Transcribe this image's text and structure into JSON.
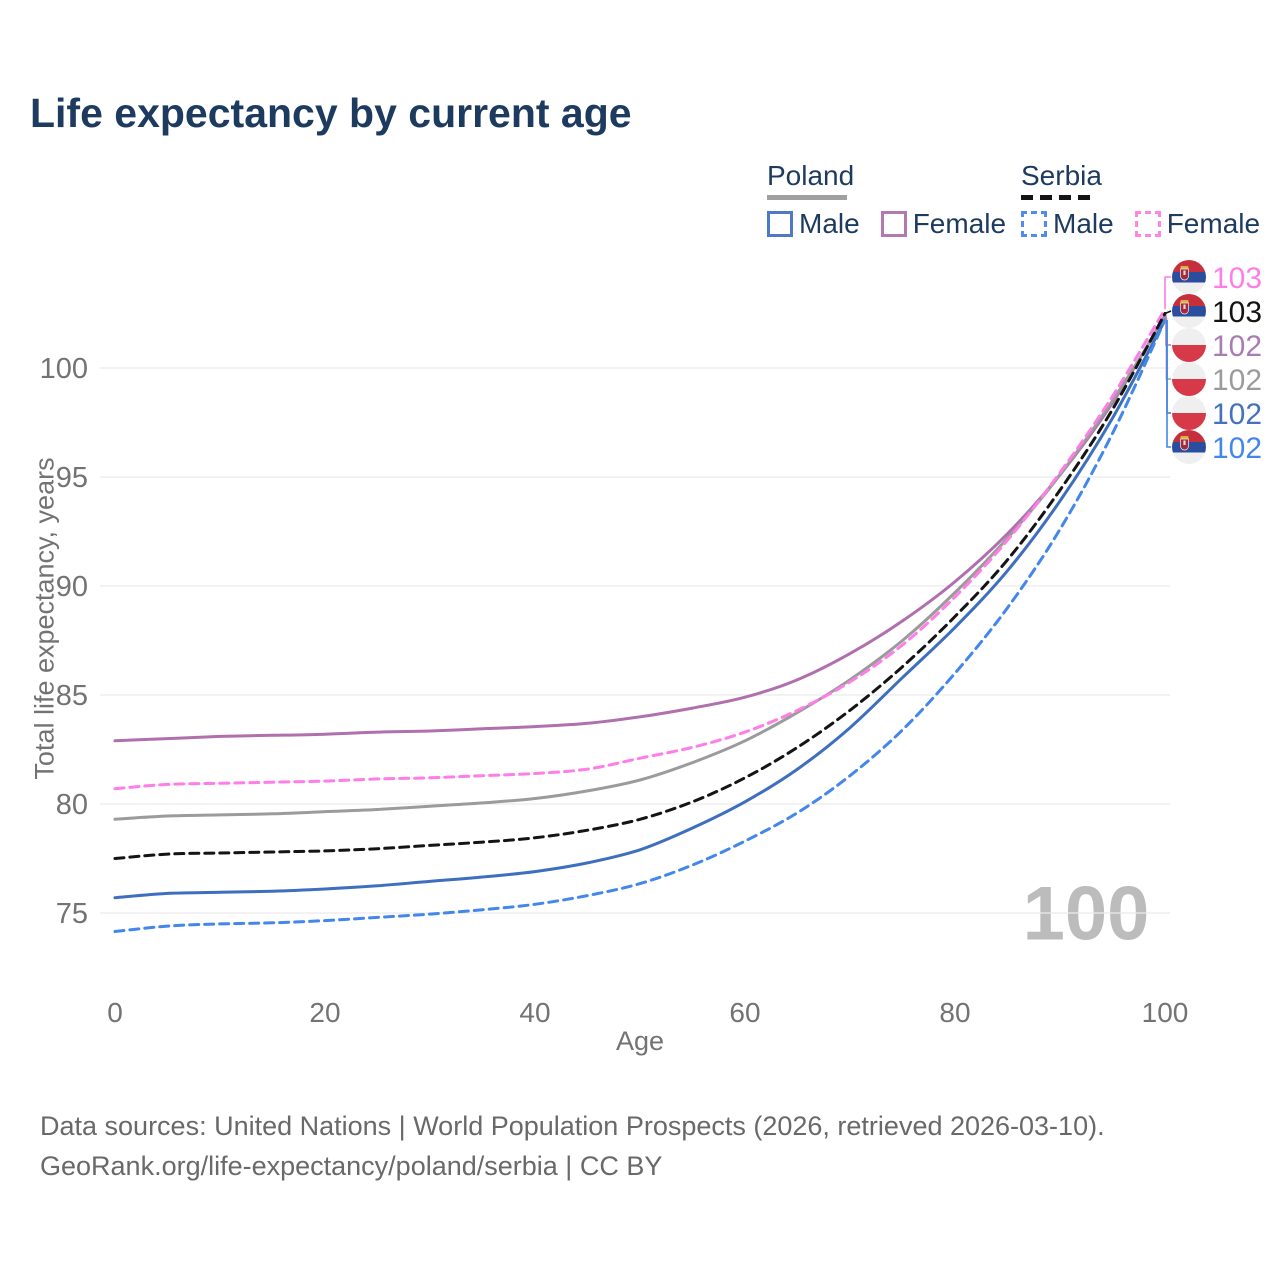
{
  "title": "Life expectancy by current age",
  "legend": {
    "poland": {
      "title": "Poland",
      "male": "Male",
      "female": "Female"
    },
    "serbia": {
      "title": "Serbia",
      "male": "Male",
      "female": "Female"
    }
  },
  "chart_data": {
    "type": "line",
    "title": "Life expectancy by current age",
    "xlabel": "Age",
    "ylabel": "Total life expectancy, years",
    "xlim": [
      0,
      100
    ],
    "ylim": [
      73.5,
      103.5
    ],
    "xticks": [
      0,
      20,
      40,
      60,
      80,
      100
    ],
    "yticks": [
      75,
      80,
      85,
      90,
      95,
      100
    ],
    "grid": "horizontal",
    "watermark": "100",
    "x": [
      0,
      5,
      10,
      15,
      20,
      25,
      30,
      35,
      40,
      45,
      50,
      55,
      60,
      65,
      70,
      75,
      80,
      85,
      90,
      95,
      100
    ],
    "series": [
      {
        "id": "poland-female",
        "name": "Poland Female",
        "country": "poland",
        "color": "#b06fad",
        "dash": false,
        "values": [
          82.9,
          83.0,
          83.1,
          83.15,
          83.2,
          83.3,
          83.35,
          83.45,
          83.55,
          83.7,
          84.0,
          84.4,
          84.9,
          85.7,
          86.9,
          88.4,
          90.2,
          92.4,
          95.1,
          98.4,
          102.4
        ]
      },
      {
        "id": "poland-total",
        "name": "Poland Both sexes",
        "country": "poland",
        "color": "#9b9b9b",
        "dash": false,
        "values": [
          79.3,
          79.45,
          79.5,
          79.55,
          79.65,
          79.75,
          79.9,
          80.05,
          80.25,
          80.6,
          81.1,
          81.9,
          82.9,
          84.2,
          85.7,
          87.5,
          89.7,
          92.2,
          95.1,
          98.5,
          102.3
        ]
      },
      {
        "id": "poland-male",
        "name": "Poland Male",
        "country": "poland",
        "color": "#3e6fbf",
        "dash": false,
        "values": [
          75.7,
          75.9,
          75.95,
          76.0,
          76.1,
          76.25,
          76.45,
          76.65,
          76.9,
          77.3,
          77.9,
          78.9,
          80.1,
          81.6,
          83.5,
          85.8,
          88.1,
          90.7,
          93.9,
          97.7,
          102.2
        ]
      },
      {
        "id": "serbia-female",
        "name": "Serbia Female",
        "country": "serbia",
        "color": "#fe7de6",
        "dash": true,
        "values": [
          80.7,
          80.9,
          80.95,
          81.0,
          81.05,
          81.15,
          81.2,
          81.3,
          81.4,
          81.6,
          82.1,
          82.6,
          83.3,
          84.3,
          85.6,
          87.3,
          89.5,
          92.1,
          95.2,
          98.7,
          102.7
        ]
      },
      {
        "id": "serbia-total",
        "name": "Serbia Both sexes",
        "country": "serbia",
        "color": "#141414",
        "dash": true,
        "values": [
          77.5,
          77.7,
          77.75,
          77.8,
          77.85,
          77.95,
          78.1,
          78.25,
          78.45,
          78.8,
          79.3,
          80.1,
          81.2,
          82.6,
          84.3,
          86.3,
          88.6,
          91.2,
          94.4,
          98.1,
          102.5
        ]
      },
      {
        "id": "serbia-male",
        "name": "Serbia Male",
        "country": "serbia",
        "color": "#4387ec",
        "dash": true,
        "values": [
          74.15,
          74.4,
          74.5,
          74.55,
          74.65,
          74.8,
          74.95,
          75.15,
          75.4,
          75.8,
          76.35,
          77.2,
          78.3,
          79.6,
          81.3,
          83.4,
          86.0,
          89.0,
          92.6,
          97.0,
          102.2
        ]
      }
    ],
    "end_labels": [
      {
        "value": "103",
        "color": "#fe7de6",
        "flag": "serbia",
        "series": "serbia-female",
        "end_value": 102.7
      },
      {
        "value": "103",
        "color": "#141414",
        "flag": "serbia",
        "series": "serbia-total",
        "end_value": 102.5
      },
      {
        "value": "102",
        "color": "#a97cb2",
        "flag": "poland",
        "series": "poland-female",
        "end_value": 102.4
      },
      {
        "value": "102",
        "color": "#9b9b9b",
        "flag": "poland",
        "series": "poland-total",
        "end_value": 102.3
      },
      {
        "value": "102",
        "color": "#4472bd",
        "flag": "poland",
        "series": "poland-male",
        "end_value": 102.2
      },
      {
        "value": "102",
        "color": "#4387ec",
        "flag": "serbia",
        "series": "serbia-male",
        "end_value": 102.2
      }
    ]
  },
  "footer": {
    "line1": "Data sources: United Nations | World Population Prospects (2026, retrieved 2026-03-10).",
    "line2": "GeoRank.org/life-expectancy/poland/serbia | CC BY"
  }
}
